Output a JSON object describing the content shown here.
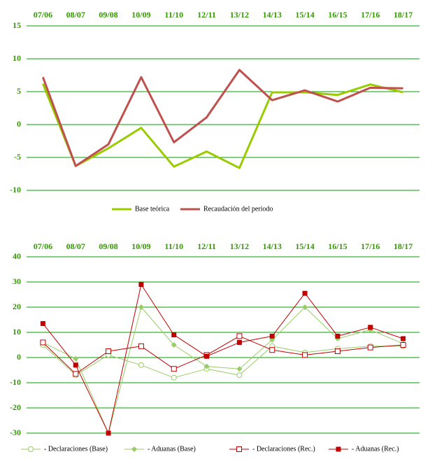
{
  "chart_data": [
    {
      "type": "line",
      "categories": [
        "07/06",
        "08/07",
        "09/08",
        "10/09",
        "11/10",
        "12/11",
        "13/12",
        "14/13",
        "15/14",
        "16/15",
        "17/16",
        "18/17"
      ],
      "ylim": [
        -10,
        15
      ],
      "yticks": [
        -10,
        -5,
        0,
        5,
        10,
        15
      ],
      "grid": true,
      "x_axis_position": "top",
      "legend": "bottom",
      "series": [
        {
          "name": "Base teórica",
          "color": "#99cc00",
          "marker": "none",
          "values": [
            6.2,
            -6.3,
            -3.6,
            -0.5,
            -6.4,
            -4.1,
            -6.6,
            4.9,
            4.9,
            4.5,
            6.1,
            4.9
          ]
        },
        {
          "name": "Recaudación del periodo",
          "color": "#c0504d",
          "marker": "none",
          "values": [
            7.2,
            -6.3,
            -3.0,
            7.2,
            -2.7,
            1.1,
            8.3,
            3.7,
            5.2,
            3.5,
            5.6,
            5.5
          ]
        }
      ]
    },
    {
      "type": "line",
      "categories": [
        "07/06",
        "08/07",
        "09/08",
        "10/09",
        "11/10",
        "12/11",
        "13/12",
        "14/13",
        "15/14",
        "16/15",
        "17/16",
        "18/17"
      ],
      "ylim": [
        -30,
        40
      ],
      "yticks": [
        -30,
        -20,
        -10,
        0,
        10,
        20,
        30,
        40
      ],
      "grid": true,
      "x_axis_position": "top",
      "legend": "bottom",
      "series": [
        {
          "name": "- Declaraciones (Base)",
          "color": "#99cc66",
          "marker": "circle-open",
          "values": [
            5,
            -7,
            1,
            -3,
            -8,
            -4.5,
            -7,
            4.5,
            2,
            3.5,
            4.5,
            4.5
          ]
        },
        {
          "name": "- Aduanas (Base)",
          "color": "#99cc66",
          "marker": "diamond",
          "values": [
            6,
            -0.5,
            -30,
            20,
            5,
            -3.5,
            -4.5,
            7,
            20,
            7.5,
            11,
            5.5
          ]
        },
        {
          "name": "- Declaraciones (Rec.)",
          "color": "#c00000",
          "marker": "square-open",
          "values": [
            6,
            -6.5,
            2.5,
            4.5,
            -4.5,
            1,
            8.5,
            3,
            1,
            2.5,
            4,
            5
          ]
        },
        {
          "name": "- Aduanas (Rec.)",
          "color": "#c00000",
          "marker": "square",
          "values": [
            13.5,
            -3,
            -30,
            29,
            9,
            0.5,
            6,
            8.5,
            25.5,
            8.5,
            12,
            7.5
          ]
        }
      ]
    }
  ]
}
